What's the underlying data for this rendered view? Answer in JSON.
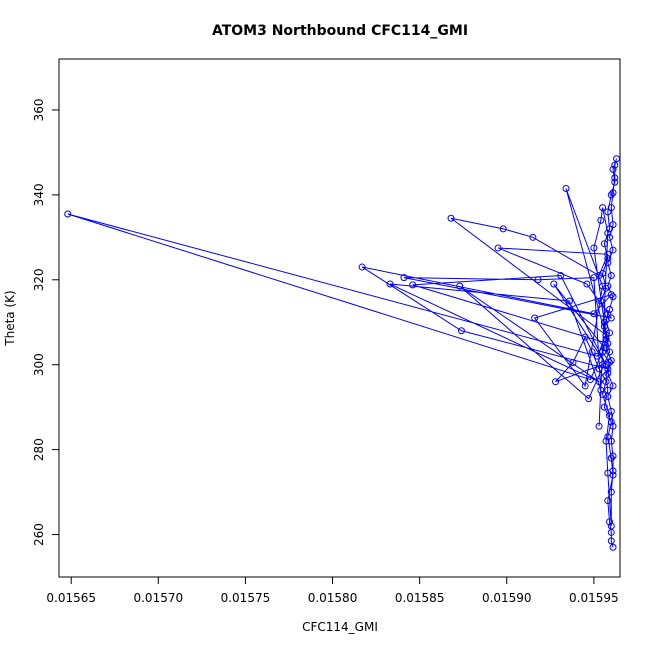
{
  "chart_data": {
    "type": "line",
    "title": "ATOM3 Northbound CFC114_GMI",
    "xlabel": "CFC114_GMI",
    "ylabel": "Theta (K)",
    "xlim": [
      0.015643,
      0.015965
    ],
    "ylim": [
      250,
      372
    ],
    "x_ticks": [
      0.01565,
      0.0157,
      0.01575,
      0.0158,
      0.01585,
      0.0159,
      0.01595
    ],
    "x_tick_labels": [
      "0.01565",
      "0.01570",
      "0.01575",
      "0.01580",
      "0.01585",
      "0.01590",
      "0.01595"
    ],
    "y_ticks": [
      260,
      280,
      300,
      320,
      340,
      360
    ],
    "y_tick_labels": [
      "260",
      "280",
      "300",
      "320",
      "340",
      "360"
    ],
    "series": [
      {
        "color": "#0000ff",
        "marker": "open-circle",
        "points": [
          [
            0.015961,
            257.0
          ],
          [
            0.01596,
            258.5
          ],
          [
            0.01596,
            260.5
          ],
          [
            0.015959,
            263.0
          ],
          [
            0.015958,
            268.0
          ],
          [
            0.015961,
            274.0
          ],
          [
            0.01596,
            278.0
          ],
          [
            0.015958,
            283.0
          ],
          [
            0.01596,
            286.5
          ],
          [
            0.015956,
            290.0
          ],
          [
            0.015958,
            294.0
          ],
          [
            0.015957,
            297.5
          ],
          [
            0.015959,
            300.5
          ],
          [
            0.015955,
            303.0
          ],
          [
            0.015957,
            306.0
          ],
          [
            0.015956,
            309.0
          ],
          [
            0.015958,
            312.0
          ],
          [
            0.015954,
            315.0
          ],
          [
            0.015957,
            318.0
          ],
          [
            0.015955,
            321.5
          ],
          [
            0.015958,
            325.0
          ],
          [
            0.015956,
            328.5
          ],
          [
            0.015959,
            332.0
          ],
          [
            0.015958,
            336.0
          ],
          [
            0.01596,
            340.0
          ],
          [
            0.015962,
            343.0
          ],
          [
            0.015961,
            346.0
          ],
          [
            0.015963,
            348.5
          ],
          [
            0.015962,
            347.0
          ],
          [
            0.015962,
            344.0
          ],
          [
            0.015961,
            340.5
          ],
          [
            0.01596,
            337.0
          ],
          [
            0.015961,
            333.0
          ],
          [
            0.015959,
            330.0
          ],
          [
            0.015961,
            327.0
          ],
          [
            0.015958,
            324.0
          ],
          [
            0.01596,
            321.0
          ],
          [
            0.015958,
            318.5
          ],
          [
            0.015961,
            316.0
          ],
          [
            0.015959,
            313.0
          ],
          [
            0.015957,
            310.5
          ],
          [
            0.015959,
            307.5
          ],
          [
            0.015957,
            304.0
          ],
          [
            0.01596,
            301.0
          ],
          [
            0.015958,
            298.0
          ],
          [
            0.015961,
            295.0
          ],
          [
            0.015958,
            292.5
          ],
          [
            0.01596,
            289.0
          ],
          [
            0.015961,
            285.5
          ],
          [
            0.01596,
            282.0
          ],
          [
            0.015961,
            278.5
          ],
          [
            0.015961,
            275.0
          ],
          [
            0.01596,
            270.0
          ],
          [
            0.01596,
            262.0
          ],
          [
            0.015958,
            274.5
          ],
          [
            0.015957,
            282.0
          ],
          [
            0.015959,
            288.0
          ],
          [
            0.015955,
            293.0
          ],
          [
            0.015957,
            296.0
          ],
          [
            0.015953,
            299.0
          ],
          [
            0.015949,
            303.0
          ],
          [
            0.015945,
            306.5
          ],
          [
            0.015938,
            300.5
          ],
          [
            0.015928,
            296.0
          ],
          [
            0.015955,
            300.0
          ],
          [
            0.015958,
            299.0
          ],
          [
            0.015874,
            308.0
          ],
          [
            0.015817,
            323.0
          ],
          [
            0.01595,
            312.0
          ],
          [
            0.01596,
            316.5
          ],
          [
            0.015916,
            311.0
          ],
          [
            0.015945,
            295.0
          ],
          [
            0.015955,
            318.5
          ],
          [
            0.015934,
            341.5
          ],
          [
            0.015958,
            305.0
          ],
          [
            0.015846,
            318.8
          ],
          [
            0.015931,
            321.0
          ],
          [
            0.015957,
            300.0
          ],
          [
            0.015927,
            319.0
          ],
          [
            0.015956,
            304.0
          ],
          [
            0.015948,
            296.5
          ],
          [
            0.015648,
            335.5
          ],
          [
            0.015952,
            302.0
          ],
          [
            0.015957,
            307.0
          ],
          [
            0.015868,
            334.5
          ],
          [
            0.015898,
            332.0
          ],
          [
            0.015915,
            330.0
          ],
          [
            0.015953,
            321.0
          ],
          [
            0.015958,
            326.0
          ],
          [
            0.015895,
            327.5
          ],
          [
            0.015946,
            319.0
          ],
          [
            0.01596,
            311.0
          ],
          [
            0.015841,
            320.5
          ],
          [
            0.015918,
            320.0
          ],
          [
            0.01595,
            320.5
          ],
          [
            0.015954,
            294.0
          ],
          [
            0.015936,
            315.0
          ],
          [
            0.015833,
            319.0
          ],
          [
            0.015953,
            296.0
          ],
          [
            0.015873,
            318.5
          ],
          [
            0.015947,
            292.0
          ],
          [
            0.015959,
            303.0
          ],
          [
            0.015956,
            310.0
          ],
          [
            0.01595,
            327.5
          ],
          [
            0.015954,
            334.0
          ],
          [
            0.015955,
            337.0
          ],
          [
            0.015958,
            331.0
          ],
          [
            0.015953,
            285.5
          ]
        ]
      }
    ]
  }
}
